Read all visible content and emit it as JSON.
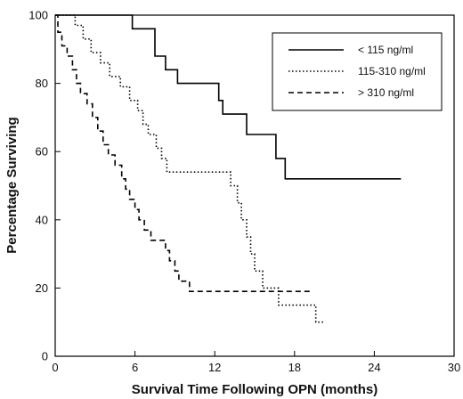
{
  "chart_data": {
    "type": "line",
    "title": "",
    "xlabel": "Survival Time Following OPN (months)",
    "ylabel": "Percentage Surviving",
    "xlim": [
      0,
      30
    ],
    "ylim": [
      0,
      100
    ],
    "xticks": [
      0,
      6,
      12,
      18,
      24,
      30
    ],
    "yticks": [
      0,
      20,
      40,
      60,
      80,
      100
    ],
    "grid": false,
    "legend_position": "top-right",
    "line_style": "step",
    "series": [
      {
        "name": "< 115 ng/ml",
        "dash": "solid",
        "x": [
          0,
          5.8,
          7.5,
          8.3,
          9.2,
          10.8,
          12.3,
          12.6,
          14.4,
          16.6,
          17.3,
          17.7,
          26.0
        ],
        "y": [
          100,
          96,
          88,
          84,
          80,
          80,
          75,
          71,
          65,
          58,
          52,
          52,
          52
        ]
      },
      {
        "name": "115-310 ng/ml",
        "dash": "dotted",
        "x": [
          0,
          1.2,
          1.5,
          2.1,
          2.7,
          3.4,
          4.1,
          4.9,
          5.6,
          6.2,
          6.6,
          7.0,
          7.6,
          8.0,
          8.4,
          8.9,
          9.3,
          9.8,
          10.4,
          11.0,
          13.2,
          13.7,
          14.0,
          14.4,
          14.7,
          15.0,
          15.3,
          15.6,
          16.4,
          16.8,
          17.2,
          18.4,
          18.8,
          19.6,
          20.2
        ],
        "y": [
          100,
          100,
          97,
          93,
          89,
          86,
          82,
          79,
          75,
          72,
          68,
          65,
          61,
          58,
          54,
          54,
          54,
          54,
          54,
          54,
          50,
          45,
          40,
          35,
          30,
          25,
          25,
          20,
          20,
          15,
          15,
          15,
          15,
          10,
          10
        ]
      },
      {
        "name": "> 310 ng/ml",
        "dash": "dashed",
        "x": [
          0,
          0.2,
          0.5,
          0.9,
          1.3,
          1.6,
          1.9,
          2.4,
          2.8,
          3.2,
          3.6,
          4.0,
          4.5,
          5.0,
          5.3,
          5.6,
          6.0,
          6.3,
          6.7,
          7.2,
          8.3,
          8.6,
          9.0,
          9.3,
          10.1,
          12.0,
          13.3,
          14.2,
          16.2,
          16.7,
          17.3,
          18.3,
          19.4
        ],
        "y": [
          100,
          95,
          91,
          88,
          84,
          80,
          77,
          74,
          70,
          66,
          62,
          59,
          56,
          52,
          49,
          46,
          43,
          40,
          37,
          34,
          31,
          28,
          25,
          22,
          19,
          19,
          19,
          19,
          19,
          19,
          19,
          19,
          19
        ]
      }
    ]
  }
}
